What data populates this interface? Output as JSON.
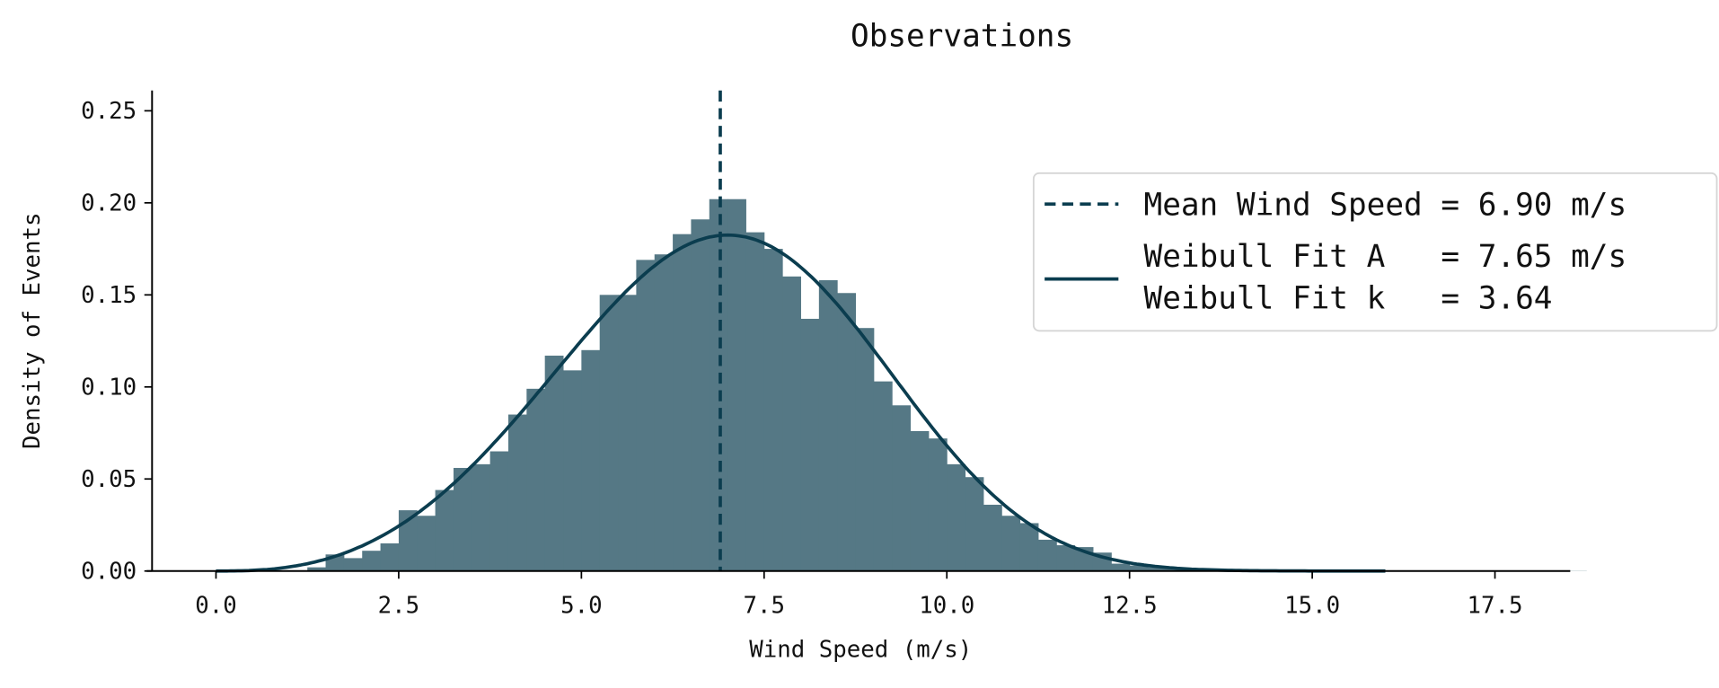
{
  "chart_data": {
    "type": "bar",
    "title": "Observations",
    "xlabel": "Wind Speed (m/s)",
    "ylabel": "Density of Events",
    "xlim": [
      -0.95,
      18.53
    ],
    "ylim": [
      0,
      0.261
    ],
    "xticks": [
      "0.0",
      "2.5",
      "5.0",
      "7.5",
      "10.0",
      "12.5",
      "15.0",
      "17.5"
    ],
    "yticks": [
      "0.00",
      "0.05",
      "0.10",
      "0.15",
      "0.20",
      "0.25"
    ],
    "grid": false,
    "legend_placement": "upper-right",
    "histogram": {
      "bin_start": 1.25,
      "bin_width": 0.25,
      "values": [
        0.002,
        0.009,
        0.007,
        0.011,
        0.015,
        0.033,
        0.03,
        0.044,
        0.056,
        0.058,
        0.065,
        0.085,
        0.099,
        0.117,
        0.109,
        0.12,
        0.15,
        0.15,
        0.169,
        0.172,
        0.183,
        0.191,
        0.202,
        0.202,
        0.184,
        0.175,
        0.16,
        0.137,
        0.158,
        0.151,
        0.132,
        0.103,
        0.09,
        0.076,
        0.072,
        0.058,
        0.051,
        0.036,
        0.03,
        0.026,
        0.017,
        0.014,
        0.013,
        0.01,
        0.004,
        0.003,
        0.002,
        0.002,
        0.001,
        0.001,
        0.001,
        0.001,
        0.0005,
        0.0005,
        0.0005,
        0.0005,
        0.0003,
        0.0003,
        0.0003,
        0.0003,
        0.0002,
        0.0002,
        0.0002,
        0.0002,
        0.0001,
        0.0001,
        0.0001,
        0.0001,
        0.0001,
        0.0001
      ]
    },
    "mean_line": {
      "x": 6.9,
      "style": "dashed"
    },
    "weibull": {
      "A": 7.65,
      "k": 3.64,
      "x_range": [
        0,
        16
      ]
    },
    "legend": [
      {
        "label": "Mean Wind Speed = 6.90 m/s",
        "style": "dashed"
      },
      {
        "label_line1": "Weibull Fit A   = 7.65 m/s",
        "label_line2": "Weibull Fit k   = 3.64",
        "style": "solid"
      }
    ],
    "colors": {
      "bars": "#557885",
      "line": "#0b3d4f",
      "legend_border": "#d6d6d6"
    }
  }
}
